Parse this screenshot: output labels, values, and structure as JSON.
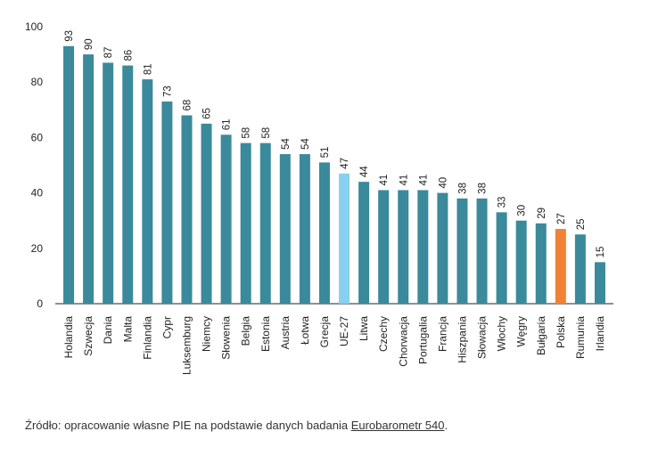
{
  "chart_data": {
    "type": "bar",
    "title": "",
    "xlabel": "",
    "ylabel": "",
    "ylim": [
      0,
      100
    ],
    "yticks": [
      0,
      20,
      40,
      60,
      80,
      100
    ],
    "grid": false,
    "categories": [
      "Holandia",
      "Szwecja",
      "Dania",
      "Malta",
      "Finlandia",
      "Cypr",
      "Luksemburg",
      "Niemcy",
      "Słowenia",
      "Belgia",
      "Estonia",
      "Austria",
      "Łotwa",
      "Grecja",
      "UE-27",
      "Litwa",
      "Czechy",
      "Chorwacja",
      "Portugalia",
      "Francja",
      "Hiszpania",
      "Słowacja",
      "Włochy",
      "Węgry",
      "Bułgaria",
      "Polska",
      "Rumunia",
      "Irlandia"
    ],
    "values": [
      93,
      90,
      87,
      86,
      81,
      73,
      68,
      65,
      61,
      58,
      58,
      54,
      54,
      51,
      47,
      44,
      41,
      41,
      41,
      40,
      38,
      38,
      33,
      30,
      29,
      27,
      25,
      15
    ],
    "colors": {
      "default": "#3a8a9b",
      "highlight_eu": "#87d0f0",
      "highlight_pl": "#f08236"
    },
    "highlight": {
      "UE-27": "highlight_eu",
      "Polska": "highlight_pl"
    }
  },
  "source": {
    "prefix": "Źródło: opracowanie własne PIE na podstawie danych badania ",
    "link": "Eurobarometr 540",
    "suffix": "."
  }
}
